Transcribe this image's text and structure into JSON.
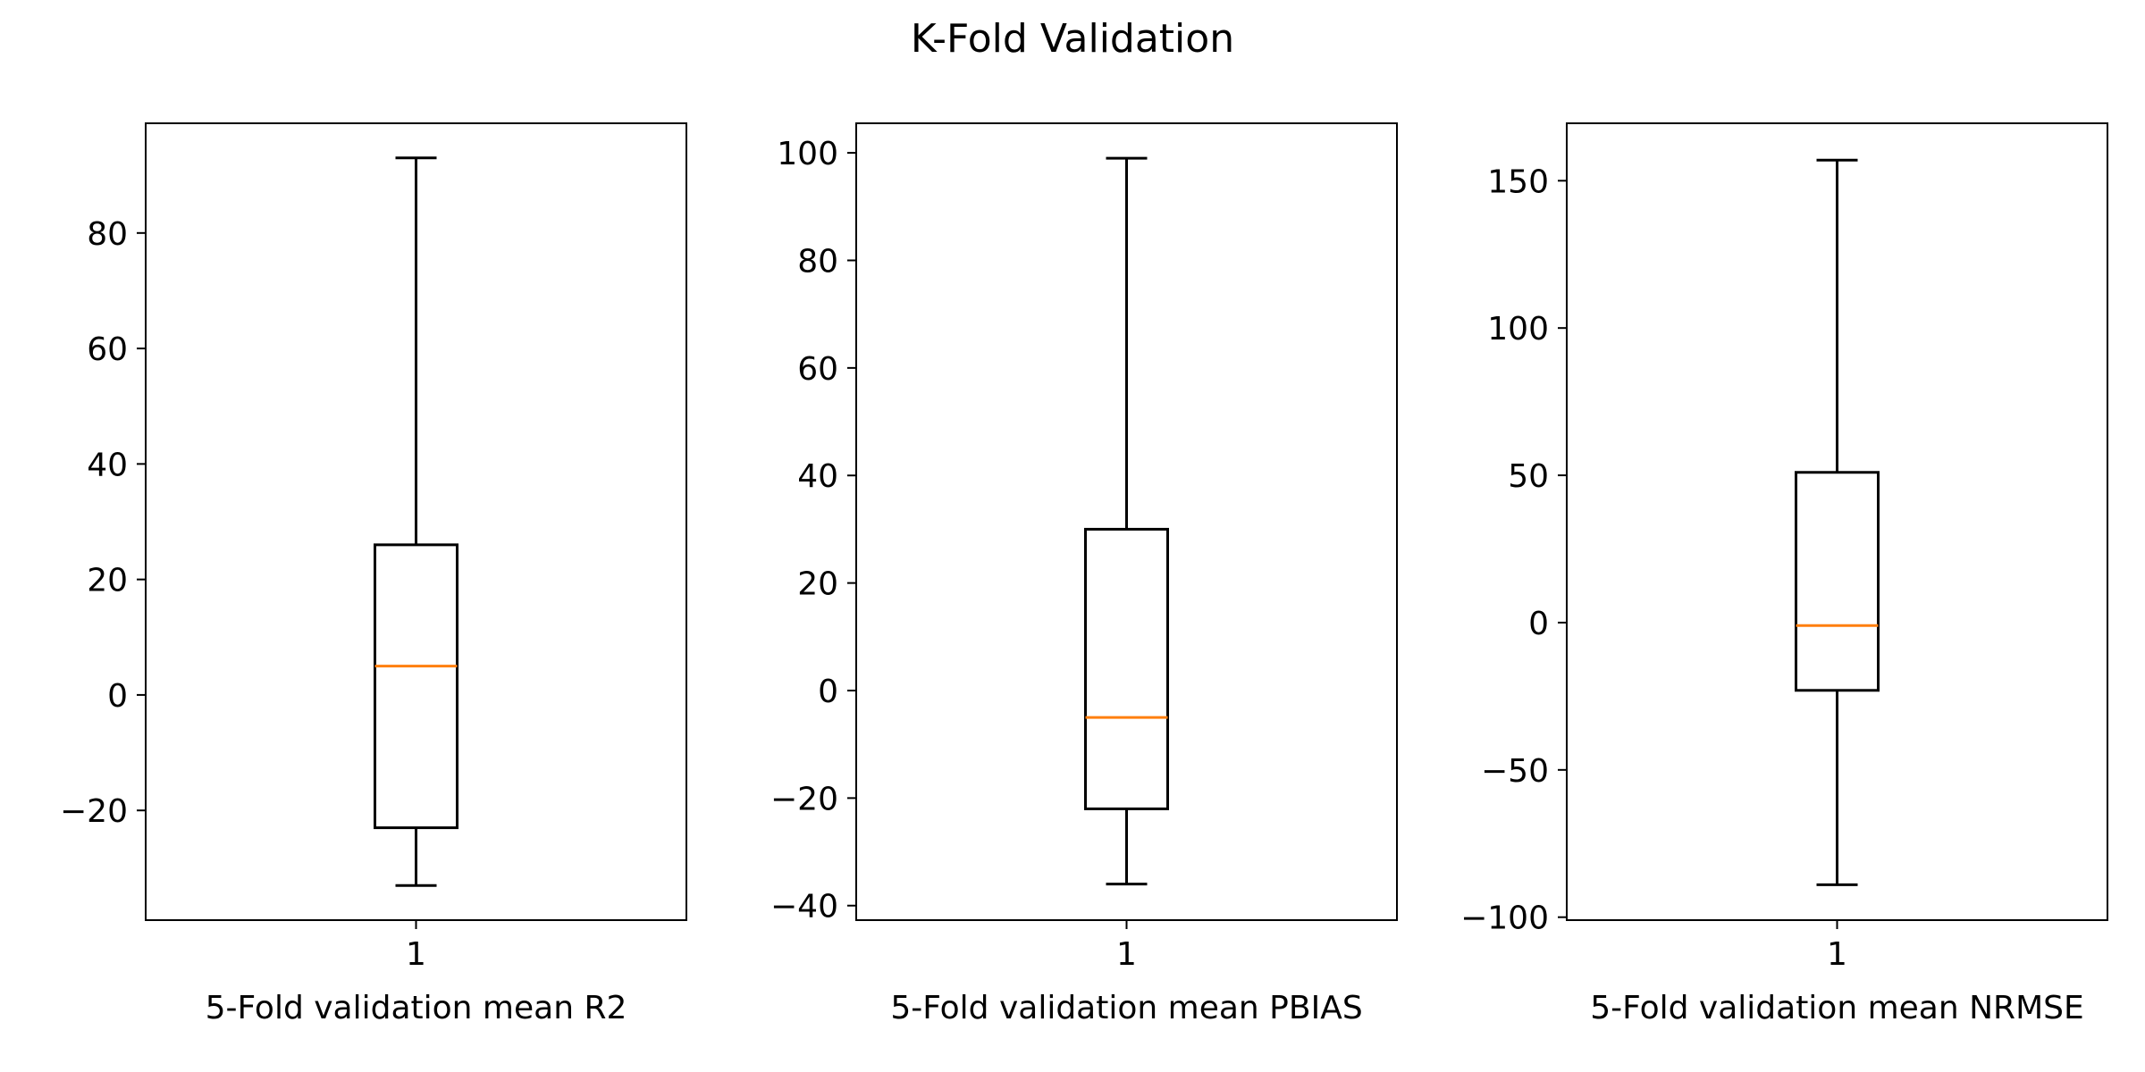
{
  "figure": {
    "title": "K-Fold Validation"
  },
  "colors": {
    "median": "#ff7f0e",
    "box": "#000000",
    "background": "#ffffff"
  },
  "chart_data": [
    {
      "type": "box",
      "title": "",
      "xlabel": "5-Fold validation mean R2",
      "ylabel": "",
      "categories": [
        "1"
      ],
      "ylim": [
        -39.0,
        99.0
      ],
      "yticks": [
        -20,
        0,
        20,
        40,
        60,
        80
      ],
      "stats": {
        "whisker_low": -33.0,
        "q1": -23.0,
        "median": 5.0,
        "q3": 26.0,
        "whisker_high": 93.0
      },
      "grid": false
    },
    {
      "type": "box",
      "title": "",
      "xlabel": "5-Fold validation mean PBIAS",
      "ylabel": "",
      "categories": [
        "1"
      ],
      "ylim": [
        -42.7,
        105.5
      ],
      "yticks": [
        -40,
        -20,
        0,
        20,
        40,
        60,
        80,
        100
      ],
      "stats": {
        "whisker_low": -36.0,
        "q1": -22.0,
        "median": -5.0,
        "q3": 30.0,
        "whisker_high": 99.0
      },
      "grid": false
    },
    {
      "type": "box",
      "title": "",
      "xlabel": "5-Fold validation mean NRMSE",
      "ylabel": "",
      "categories": [
        "1"
      ],
      "ylim": [
        -101.0,
        169.5
      ],
      "yticks": [
        -100,
        -50,
        0,
        50,
        100,
        150
      ],
      "stats": {
        "whisker_low": -89.0,
        "q1": -23.0,
        "median": -1.0,
        "q3": 51.0,
        "whisker_high": 157.0
      },
      "grid": false
    }
  ]
}
